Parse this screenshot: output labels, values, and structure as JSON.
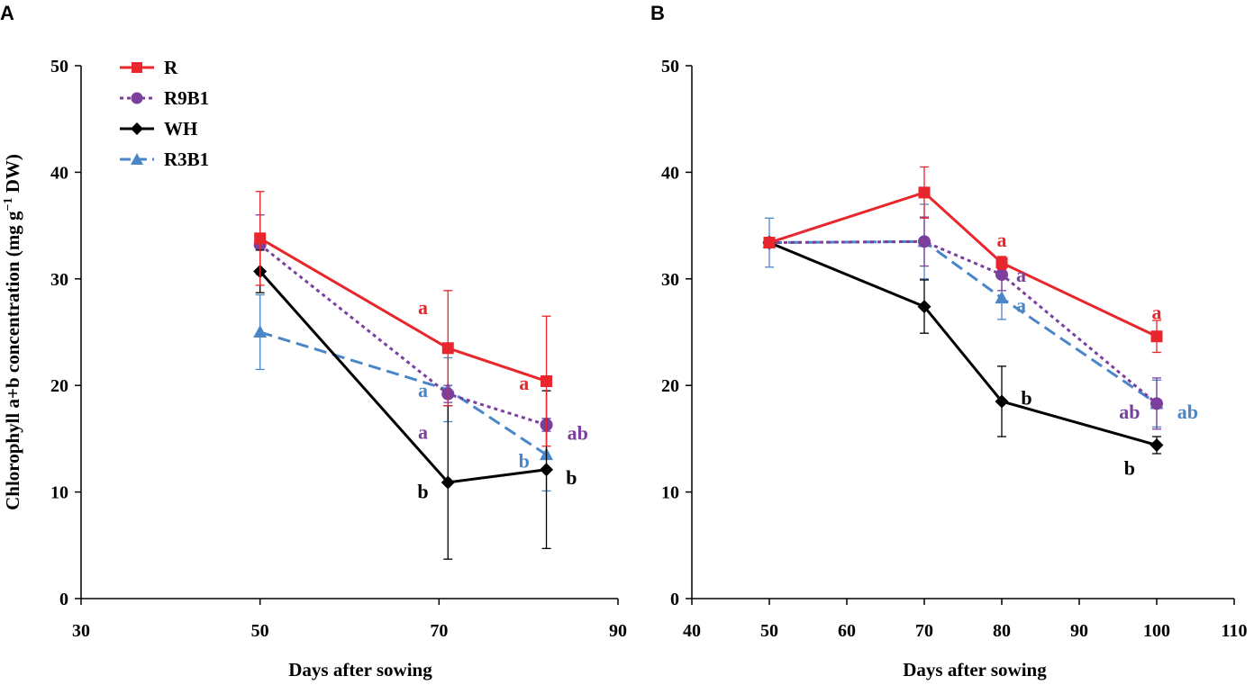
{
  "figure": {
    "ylabel_main": "Chlorophyll a+b concentration (mg g",
    "ylabel_sup": "−1",
    "ylabel_end": " DW)"
  },
  "series_styles": [
    {
      "name": "R",
      "color": "#e8262b",
      "marker": "square",
      "dash": "none"
    },
    {
      "name": "R9B1",
      "color": "#7b3f9e",
      "marker": "circle",
      "dash": "dot"
    },
    {
      "name": "WH",
      "color": "#000000",
      "marker": "diamond",
      "dash": "none"
    },
    {
      "name": "R3B1",
      "color": "#4a86c8",
      "marker": "triangle",
      "dash": "dash"
    }
  ],
  "chart_data": [
    {
      "panel": "A",
      "type": "line",
      "xlabel": "Days after sowing",
      "ylabel": "Chlorophyll a+b concentration (mg g−1 DW)",
      "xlim": [
        30,
        90
      ],
      "xticks": [
        30,
        50,
        70,
        90
      ],
      "ylim": [
        0,
        50
      ],
      "yticks": [
        0,
        10,
        20,
        30,
        40,
        50
      ],
      "legend": "top-left",
      "series": [
        {
          "name": "R",
          "x": [
            50,
            71,
            82
          ],
          "y": [
            33.8,
            23.5,
            20.4
          ],
          "err": [
            4.4,
            5.4,
            6.1
          ]
        },
        {
          "name": "R9B1",
          "x": [
            50,
            71,
            82
          ],
          "y": [
            33.2,
            19.2,
            16.3
          ],
          "err": [
            2.8,
            0.8,
            0.6
          ]
        },
        {
          "name": "WH",
          "x": [
            50,
            71,
            82
          ],
          "y": [
            30.7,
            10.9,
            12.1
          ],
          "err": [
            2.0,
            7.2,
            7.4
          ]
        },
        {
          "name": "R3B1",
          "x": [
            50,
            71,
            82
          ],
          "y": [
            25.0,
            19.6,
            13.5
          ],
          "err": [
            3.5,
            3.0,
            3.4
          ]
        }
      ],
      "annotations": [
        {
          "text": "a",
          "series": "R",
          "x": 68.2,
          "y": 27.3
        },
        {
          "text": "a",
          "series": "R",
          "x": 79.5,
          "y": 20.2
        },
        {
          "text": "a",
          "series": "R3B1",
          "x": 68.2,
          "y": 19.5
        },
        {
          "text": "a",
          "series": "R9B1",
          "x": 68.2,
          "y": 15.6
        },
        {
          "text": "ab",
          "series": "R9B1",
          "x": 85.5,
          "y": 15.5
        },
        {
          "text": "b",
          "series": "R3B1",
          "x": 79.5,
          "y": 12.9
        },
        {
          "text": "b",
          "series": "WH",
          "x": 68.2,
          "y": 10.0
        },
        {
          "text": "b",
          "series": "WH",
          "x": 84.8,
          "y": 11.3
        }
      ]
    },
    {
      "panel": "B",
      "type": "line",
      "xlabel": "Days after sowing",
      "ylabel": "",
      "xlim": [
        40,
        110
      ],
      "xticks": [
        40,
        50,
        60,
        70,
        80,
        90,
        100,
        110
      ],
      "ylim": [
        0,
        50
      ],
      "yticks": [
        0,
        10,
        20,
        30,
        40,
        50
      ],
      "series": [
        {
          "name": "R",
          "x": [
            50,
            70,
            80,
            100
          ],
          "y": [
            33.4,
            38.1,
            31.5,
            24.6
          ],
          "err": [
            0.4,
            2.4,
            0.6,
            1.5
          ]
        },
        {
          "name": "R9B1",
          "x": [
            50,
            70,
            80,
            100
          ],
          "y": [
            33.4,
            33.5,
            30.4,
            18.3
          ],
          "err": [
            0.4,
            2.3,
            1.5,
            2.4
          ]
        },
        {
          "name": "WH",
          "x": [
            50,
            70,
            80,
            100
          ],
          "y": [
            33.4,
            27.4,
            18.5,
            14.4
          ],
          "err": [
            0.4,
            2.5,
            3.3,
            0.8
          ]
        },
        {
          "name": "R3B1",
          "x": [
            50,
            70,
            80,
            100
          ],
          "y": [
            33.4,
            33.5,
            28.2,
            18.3
          ],
          "err": [
            2.3,
            3.5,
            2.0,
            2.2
          ]
        }
      ],
      "annotations": [
        {
          "text": "a",
          "series": "R",
          "x": 80,
          "y": 33.6
        },
        {
          "text": "a",
          "series": "R9B1",
          "x": 82.5,
          "y": 30.3
        },
        {
          "text": "a",
          "series": "R3B1",
          "x": 82.5,
          "y": 27.5
        },
        {
          "text": "a",
          "series": "R",
          "x": 100,
          "y": 26.8
        },
        {
          "text": "b",
          "series": "WH",
          "x": 83.2,
          "y": 18.8
        },
        {
          "text": "ab",
          "series": "R9B1",
          "x": 96.5,
          "y": 17.5
        },
        {
          "text": "ab",
          "series": "R3B1",
          "x": 104,
          "y": 17.5
        },
        {
          "text": "b",
          "series": "WH",
          "x": 96.5,
          "y": 12.2
        }
      ]
    }
  ]
}
